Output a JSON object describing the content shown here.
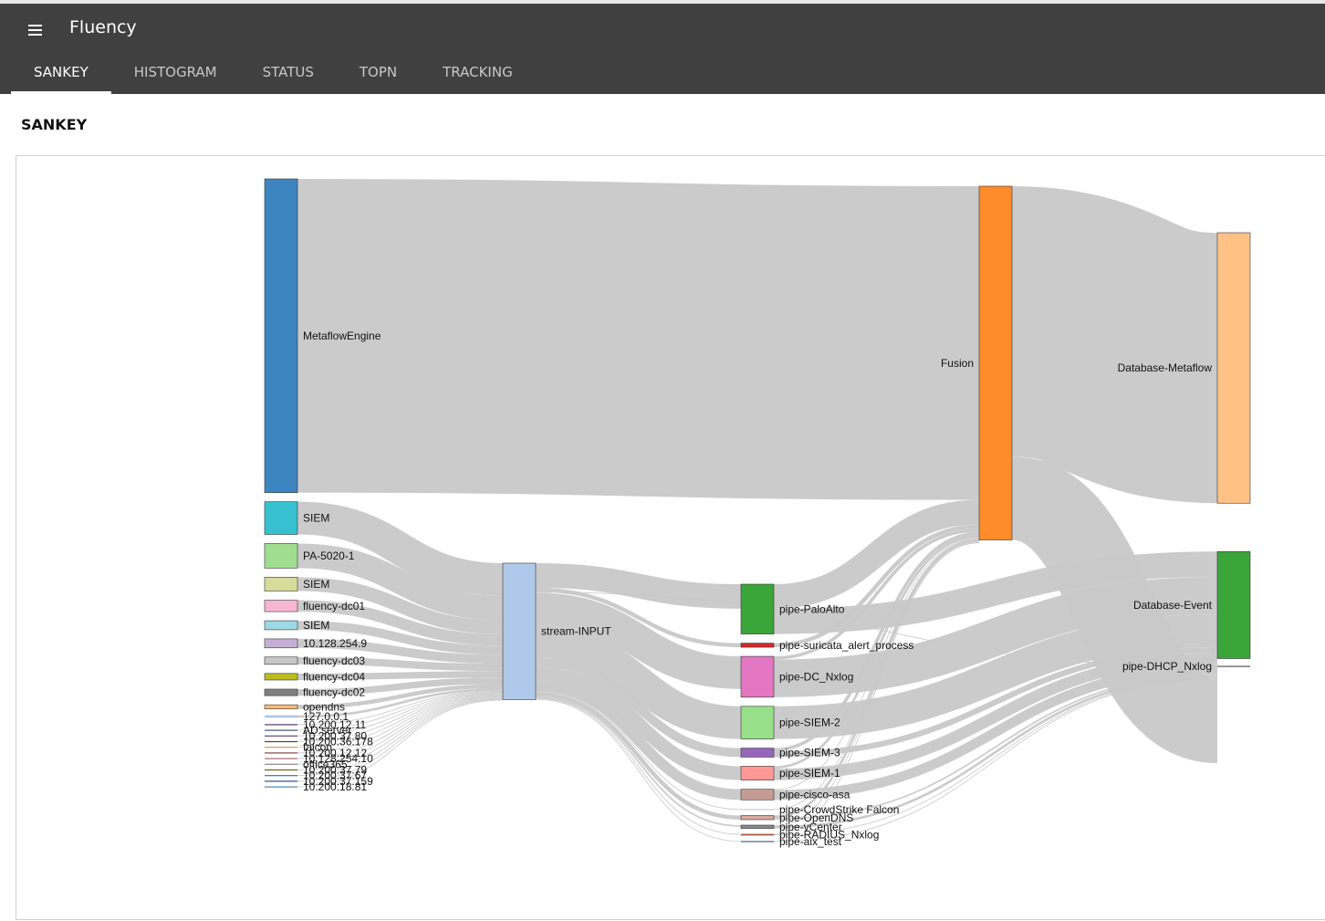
{
  "app": {
    "title": "Fluency"
  },
  "tabs": [
    {
      "label": "SANKEY",
      "active": true
    },
    {
      "label": "HISTOGRAM",
      "active": false
    },
    {
      "label": "STATUS",
      "active": false
    },
    {
      "label": "TOPN",
      "active": false
    },
    {
      "label": "TRACKING",
      "active": false
    }
  ],
  "page": {
    "title": "SANKEY"
  },
  "chart_data": {
    "type": "sankey",
    "link_color": "#c8c8c8",
    "nodes": [
      {
        "name": "MetaflowEngine",
        "column": 0,
        "value": 384,
        "color": "#3d85c0"
      },
      {
        "name": "SIEM",
        "column": 0,
        "value": 40,
        "color": "#37c0d0"
      },
      {
        "name": "PA-5020-1",
        "column": 0,
        "value": 30,
        "color": "#a0dd90"
      },
      {
        "name": "SIEM",
        "column": 0,
        "value": 17,
        "color": "#d8dc9a"
      },
      {
        "name": "fluency-dc01",
        "column": 0,
        "value": 14,
        "color": "#f7b6d2"
      },
      {
        "name": "SIEM",
        "column": 0,
        "value": 11,
        "color": "#9edae5"
      },
      {
        "name": "10.128.254.9",
        "column": 0,
        "value": 11,
        "color": "#c5b0d5"
      },
      {
        "name": "fluency-dc03",
        "column": 0,
        "value": 9,
        "color": "#c7c7c7"
      },
      {
        "name": "fluency-dc04",
        "column": 0,
        "value": 8,
        "color": "#bcbd22"
      },
      {
        "name": "fluency-dc02",
        "column": 0,
        "value": 8,
        "color": "#7f7f7f"
      },
      {
        "name": "opendns",
        "column": 0,
        "value": 5,
        "color": "#ffbb78"
      },
      {
        "name": "127.0.0.1",
        "column": 0,
        "value": 3,
        "color": "#aec7e8"
      },
      {
        "name": "10.200.12.11",
        "column": 0,
        "value": 1,
        "color": "#553377"
      },
      {
        "name": "AD server",
        "column": 0,
        "value": 1,
        "color": "#445566"
      },
      {
        "name": "10.200.37.80",
        "column": 0,
        "value": 1,
        "color": "#664477"
      },
      {
        "name": "10.200.36.178",
        "column": 0,
        "value": 1,
        "color": "#554422"
      },
      {
        "name": "falcon",
        "column": 0,
        "value": 1,
        "color": "#cc9966"
      },
      {
        "name": "10.200.12.12",
        "column": 0,
        "value": 1,
        "color": "#884444"
      },
      {
        "name": "10.128.254.10",
        "column": 0,
        "value": 1,
        "color": "#aa6677"
      },
      {
        "name": "office365",
        "column": 0,
        "value": 1,
        "color": "#888888"
      },
      {
        "name": "10.200.37.79",
        "column": 0,
        "value": 1,
        "color": "#666600"
      },
      {
        "name": "10.200.37.67",
        "column": 0,
        "value": 1,
        "color": "#3377aa"
      },
      {
        "name": "10.200.37.159",
        "column": 0,
        "value": 1,
        "color": "#225577"
      },
      {
        "name": "10.200.18.81",
        "column": 0,
        "value": 1,
        "color": "#4488bb"
      },
      {
        "name": "stream-INPUT",
        "column": 1,
        "value": 167,
        "color": "#b0c8ea"
      },
      {
        "name": "pipe-PaloAlto",
        "column": 2,
        "value": 61,
        "color": "#3aa63a"
      },
      {
        "name": "pipe-suricata_alert_process",
        "column": 2,
        "value": 5,
        "color": "#d62728"
      },
      {
        "name": "pipe-DC_Nxlog",
        "column": 2,
        "value": 50,
        "color": "#e377c2"
      },
      {
        "name": "pipe-SIEM-2",
        "column": 2,
        "value": 40,
        "color": "#98df8a"
      },
      {
        "name": "pipe-SIEM-3",
        "column": 2,
        "value": 11,
        "color": "#9467bd"
      },
      {
        "name": "pipe-SIEM-1",
        "column": 2,
        "value": 17,
        "color": "#ff9896"
      },
      {
        "name": "pipe-cisco-asa",
        "column": 2,
        "value": 13,
        "color": "#c49c94"
      },
      {
        "name": "pipe-CrowdStrike Falcon",
        "column": 2,
        "value": 1,
        "color": "#cccccc"
      },
      {
        "name": "pipe-OpenDNS",
        "column": 2,
        "value": 5,
        "color": "#dba8a0"
      },
      {
        "name": "pipe-vCenter",
        "column": 2,
        "value": 4,
        "color": "#888888"
      },
      {
        "name": "pipe-RADIUS_Nxlog",
        "column": 2,
        "value": 2,
        "color": "#aa5544"
      },
      {
        "name": "pipe-aix_test",
        "column": 2,
        "value": 1,
        "color": "#446688"
      },
      {
        "name": "Fusion",
        "column": 3,
        "value": 433,
        "color": "#ff8c2a"
      },
      {
        "name": "Database-Metaflow",
        "column": 4,
        "value": 331,
        "color": "#ffc285"
      },
      {
        "name": "Database-Event",
        "column": 4,
        "value": 131,
        "color": "#3aa63a"
      },
      {
        "name": "pipe-DHCP_Nxlog",
        "column": 4,
        "value": 1,
        "color": "#555555"
      }
    ],
    "links": [
      {
        "source": 0,
        "target": 37,
        "value": 384
      },
      {
        "source": 1,
        "target": 24,
        "value": 40
      },
      {
        "source": 2,
        "target": 24,
        "value": 30
      },
      {
        "source": 3,
        "target": 24,
        "value": 17
      },
      {
        "source": 4,
        "target": 24,
        "value": 14
      },
      {
        "source": 5,
        "target": 24,
        "value": 11
      },
      {
        "source": 6,
        "target": 24,
        "value": 11
      },
      {
        "source": 7,
        "target": 24,
        "value": 9
      },
      {
        "source": 8,
        "target": 24,
        "value": 8
      },
      {
        "source": 9,
        "target": 24,
        "value": 8
      },
      {
        "source": 10,
        "target": 24,
        "value": 5
      },
      {
        "source": 11,
        "target": 24,
        "value": 3
      },
      {
        "source": 12,
        "target": 24,
        "value": 1
      },
      {
        "source": 13,
        "target": 24,
        "value": 1
      },
      {
        "source": 14,
        "target": 24,
        "value": 1
      },
      {
        "source": 15,
        "target": 24,
        "value": 1
      },
      {
        "source": 16,
        "target": 24,
        "value": 1
      },
      {
        "source": 17,
        "target": 24,
        "value": 1
      },
      {
        "source": 18,
        "target": 24,
        "value": 1
      },
      {
        "source": 19,
        "target": 24,
        "value": 1
      },
      {
        "source": 20,
        "target": 24,
        "value": 1
      },
      {
        "source": 21,
        "target": 24,
        "value": 1
      },
      {
        "source": 22,
        "target": 24,
        "value": 1
      },
      {
        "source": 23,
        "target": 24,
        "value": 1
      },
      {
        "source": 24,
        "target": 25,
        "value": 30
      },
      {
        "source": 24,
        "target": 26,
        "value": 5
      },
      {
        "source": 24,
        "target": 40,
        "value": 1
      },
      {
        "source": 24,
        "target": 27,
        "value": 40
      },
      {
        "source": 24,
        "target": 28,
        "value": 40
      },
      {
        "source": 24,
        "target": 29,
        "value": 11
      },
      {
        "source": 24,
        "target": 30,
        "value": 17
      },
      {
        "source": 24,
        "target": 31,
        "value": 13
      },
      {
        "source": 24,
        "target": 32,
        "value": 1
      },
      {
        "source": 24,
        "target": 33,
        "value": 5
      },
      {
        "source": 24,
        "target": 34,
        "value": 2
      },
      {
        "source": 24,
        "target": 35,
        "value": 1
      },
      {
        "source": 24,
        "target": 36,
        "value": 1
      },
      {
        "source": 25,
        "target": 37,
        "value": 30
      },
      {
        "source": 25,
        "target": 39,
        "value": 31
      },
      {
        "source": 26,
        "target": 37,
        "value": 5
      },
      {
        "source": 27,
        "target": 37,
        "value": 4
      },
      {
        "source": 27,
        "target": 39,
        "value": 46
      },
      {
        "source": 28,
        "target": 39,
        "value": 40
      },
      {
        "source": 29,
        "target": 37,
        "value": 4
      },
      {
        "source": 29,
        "target": 39,
        "value": 7
      },
      {
        "source": 30,
        "target": 37,
        "value": 3
      },
      {
        "source": 30,
        "target": 39,
        "value": 14
      },
      {
        "source": 31,
        "target": 37,
        "value": 1
      },
      {
        "source": 31,
        "target": 39,
        "value": 12
      },
      {
        "source": 32,
        "target": 37,
        "value": 1
      },
      {
        "source": 33,
        "target": 37,
        "value": 3
      },
      {
        "source": 33,
        "target": 39,
        "value": 2
      },
      {
        "source": 34,
        "target": 37,
        "value": 1
      },
      {
        "source": 34,
        "target": 39,
        "value": 3
      },
      {
        "source": 35,
        "target": 37,
        "value": 1
      },
      {
        "source": 35,
        "target": 39,
        "value": 1
      },
      {
        "source": 36,
        "target": 39,
        "value": 1
      },
      {
        "source": 37,
        "target": 38,
        "value": 331
      },
      {
        "source": 37,
        "target": 39,
        "value": 102
      }
    ]
  }
}
